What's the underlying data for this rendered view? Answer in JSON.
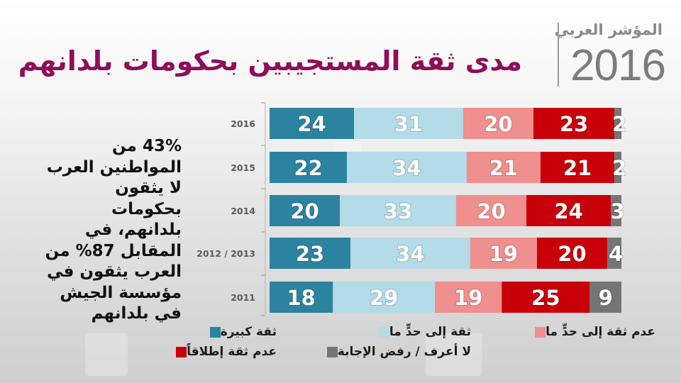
{
  "brand": {
    "subtitle": "المؤشر العربي",
    "year": "2016"
  },
  "title": "مدى ثقة المستجيبين بحكومات بلدانهم",
  "side_note": "43% من المواطنين العرب لا يثقون بحكومات بلدانهم، في المقابل 87% من العرب يثقون في مؤسسة الجيش في بلدانهم",
  "chart_data": {
    "type": "bar",
    "orientation": "horizontal",
    "stacked": true,
    "title": "مدى ثقة المستجيبين بحكومات بلدانهم",
    "xlabel": "",
    "ylabel": "",
    "xlim": [
      0,
      100
    ],
    "grid": false,
    "legend_position": "bottom",
    "categories": [
      "2016",
      "2015",
      "2014",
      "2012 / 2013",
      "2011"
    ],
    "series": [
      {
        "name": "ثقة كبيرة",
        "color": "#2c83a0",
        "values": [
          24,
          22,
          20,
          23,
          18
        ]
      },
      {
        "name": "ثقة إلى حدٍّ ما",
        "color": "#b3dbe8",
        "values": [
          31,
          34,
          33,
          34,
          29
        ]
      },
      {
        "name": "عدم ثقة إلى حدٍّ ما",
        "color": "#ef8f8e",
        "values": [
          20,
          21,
          20,
          19,
          19
        ]
      },
      {
        "name": "عدم ثقة إطلاقاً",
        "color": "#c7000a",
        "values": [
          23,
          21,
          24,
          20,
          25
        ]
      },
      {
        "name": "لا أعرف / رفض الإجابة",
        "color": "#757575",
        "values": [
          2,
          2,
          3,
          4,
          9
        ]
      }
    ]
  },
  "legend": [
    {
      "label": "ثقة كبيرة",
      "color": "#2c83a0"
    },
    {
      "label": "ثقة إلى حدٍّ ما",
      "color": "#b3dbe8"
    },
    {
      "label": "عدم ثقة إلى حدٍّ ما",
      "color": "#ef8f8e"
    },
    {
      "label": "عدم ثقة إطلاقاً",
      "color": "#c7000a"
    },
    {
      "label": "لا أعرف / رفض الإجابة",
      "color": "#757575"
    }
  ]
}
